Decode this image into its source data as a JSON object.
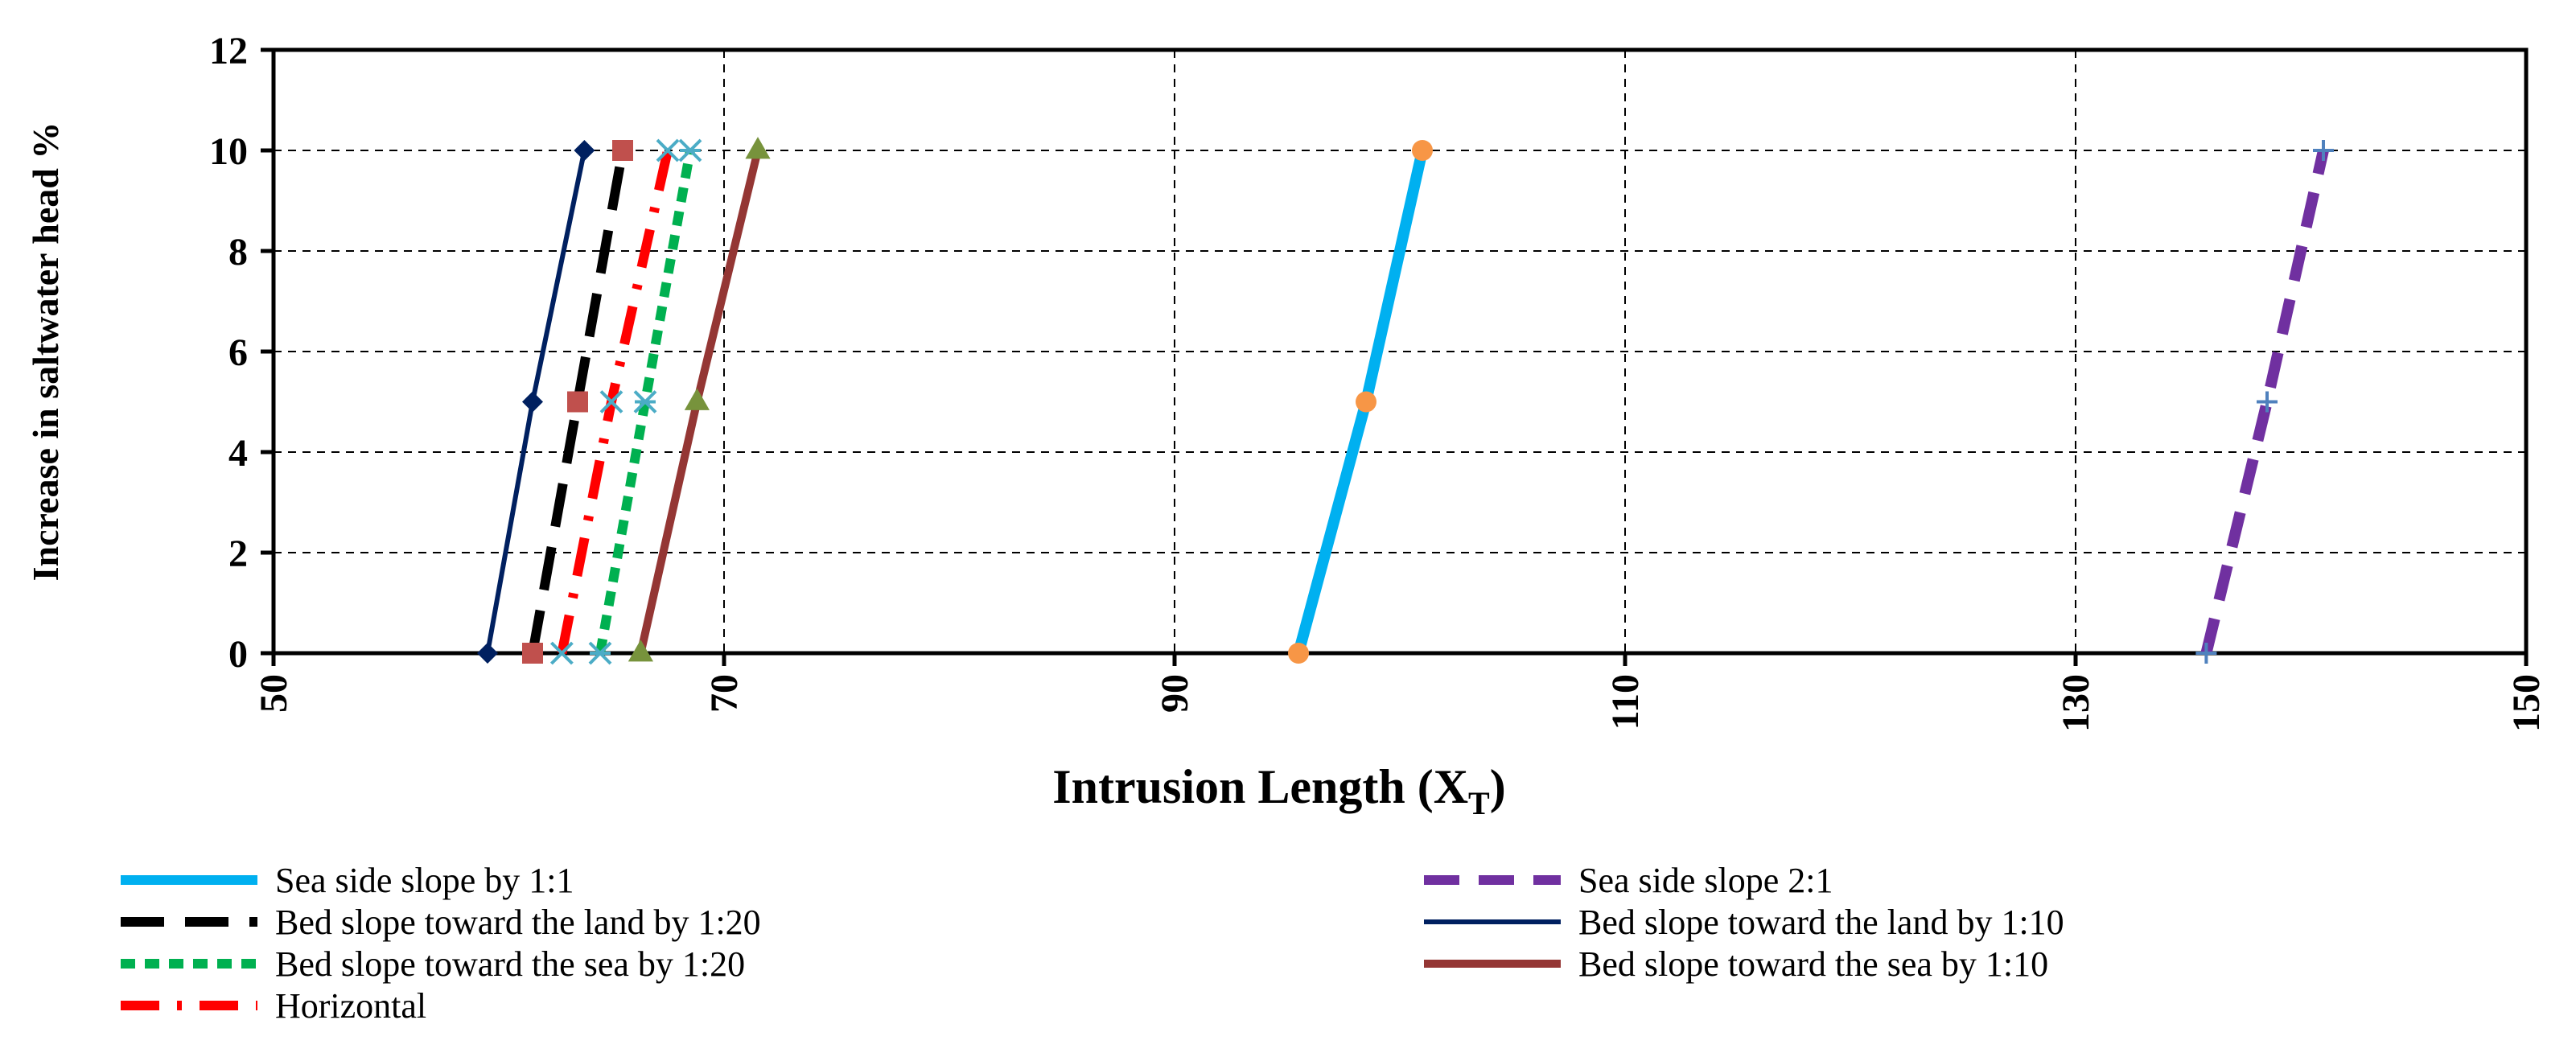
{
  "chart_data": {
    "type": "line",
    "title": "",
    "xlabel": "Intrusion Length (X",
    "xlabel_sub": "T",
    "xlabel_end": ")",
    "ylabel": "Increase in saltwater head  %",
    "xlim": [
      50,
      150
    ],
    "ylim": [
      0,
      12
    ],
    "xticks": [
      50,
      70,
      90,
      110,
      130,
      150
    ],
    "yticks": [
      0,
      2,
      4,
      6,
      8,
      10,
      12
    ],
    "grid": true,
    "legend_position": "bottom",
    "series": [
      {
        "name": "Sea side slope by 1:1",
        "color": "#00b0f0",
        "dash": "solid",
        "width": 14,
        "marker": "circle",
        "marker_color": "#f79646",
        "points": [
          {
            "x": 95.5,
            "y": 0
          },
          {
            "x": 98.5,
            "y": 5
          },
          {
            "x": 101,
            "y": 10
          }
        ]
      },
      {
        "name": "Sea side slope 2:1",
        "color": "#7030a0",
        "dash": "dash",
        "width": 14,
        "marker": "plus",
        "marker_color": "#4f81bd",
        "points": [
          {
            "x": 135.8,
            "y": 0
          },
          {
            "x": 138.5,
            "y": 5
          },
          {
            "x": 141,
            "y": 10
          }
        ]
      },
      {
        "name": "Bed slope toward the land by 1:20",
        "color": "#000000",
        "dash": "longdash",
        "width": 12,
        "marker": "square",
        "marker_color": "#c0504d",
        "points": [
          {
            "x": 61.5,
            "y": 0
          },
          {
            "x": 63.5,
            "y": 5
          },
          {
            "x": 65.5,
            "y": 10
          }
        ]
      },
      {
        "name": "Bed slope toward the land by 1:10",
        "color": "#002060",
        "dash": "solid",
        "width": 6,
        "marker": "diamond",
        "marker_color": "#002060",
        "points": [
          {
            "x": 59.5,
            "y": 0
          },
          {
            "x": 61.5,
            "y": 5
          },
          {
            "x": 63.8,
            "y": 10
          }
        ]
      },
      {
        "name": "Bed slope toward the sea by 1:20",
        "color": "#00b050",
        "dash": "shortdash",
        "width": 12,
        "marker": "cross",
        "marker_color": "#4bacc6",
        "points": [
          {
            "x": 64.5,
            "y": 0
          },
          {
            "x": 66.5,
            "y": 5
          },
          {
            "x": 68.5,
            "y": 10
          }
        ]
      },
      {
        "name": "Bed slope toward the sea by 1:10",
        "color": "#943634",
        "dash": "solid",
        "width": 10,
        "marker": "triangle",
        "marker_color": "#77933c",
        "points": [
          {
            "x": 66.3,
            "y": 0
          },
          {
            "x": 68.8,
            "y": 5
          },
          {
            "x": 71.5,
            "y": 10
          }
        ]
      },
      {
        "name": "Horizontal",
        "color": "#ff0000",
        "dash": "dashdot",
        "width": 12,
        "marker": "x",
        "marker_color": "#4bacc6",
        "points": [
          {
            "x": 62.8,
            "y": 0
          },
          {
            "x": 65,
            "y": 5
          },
          {
            "x": 67.5,
            "y": 10
          }
        ]
      }
    ]
  }
}
